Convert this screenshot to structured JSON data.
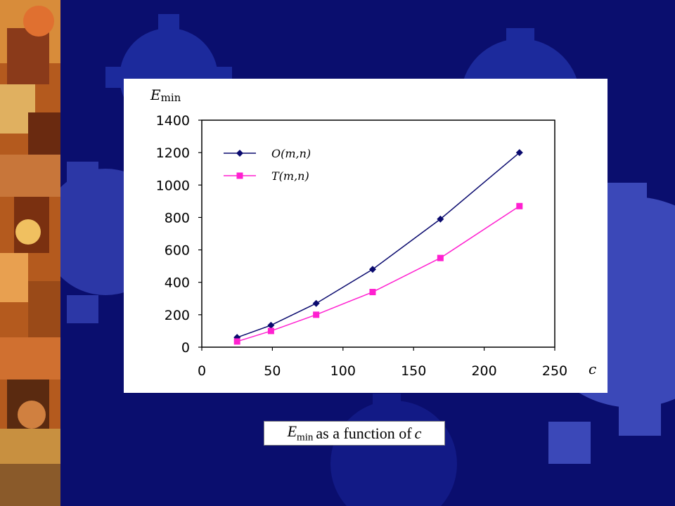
{
  "slide": {
    "caption": {
      "symbol": "E",
      "subscript": "min",
      "text": "as a function of",
      "variable": "c"
    }
  },
  "chart_data": {
    "type": "line",
    "title": "",
    "xlabel": "c",
    "ylabel": "E",
    "ylabel_sub": "min",
    "xlim": [
      0,
      250
    ],
    "ylim": [
      0,
      1400
    ],
    "xticks": [
      0,
      50,
      100,
      150,
      200,
      250
    ],
    "yticks": [
      0,
      200,
      400,
      600,
      800,
      1000,
      1200,
      1400
    ],
    "legend_position": "top-left",
    "grid": false,
    "series": [
      {
        "name": "O(m,n)",
        "color": "#0a0a6e",
        "marker": "diamond",
        "x": [
          25,
          49,
          81,
          121,
          169,
          225
        ],
        "y": [
          60,
          135,
          270,
          480,
          790,
          1200
        ]
      },
      {
        "name": "T(m,n)",
        "color": "#ff20d0",
        "marker": "square",
        "x": [
          25,
          49,
          81,
          121,
          169,
          225
        ],
        "y": [
          35,
          100,
          200,
          340,
          550,
          870
        ]
      }
    ]
  }
}
